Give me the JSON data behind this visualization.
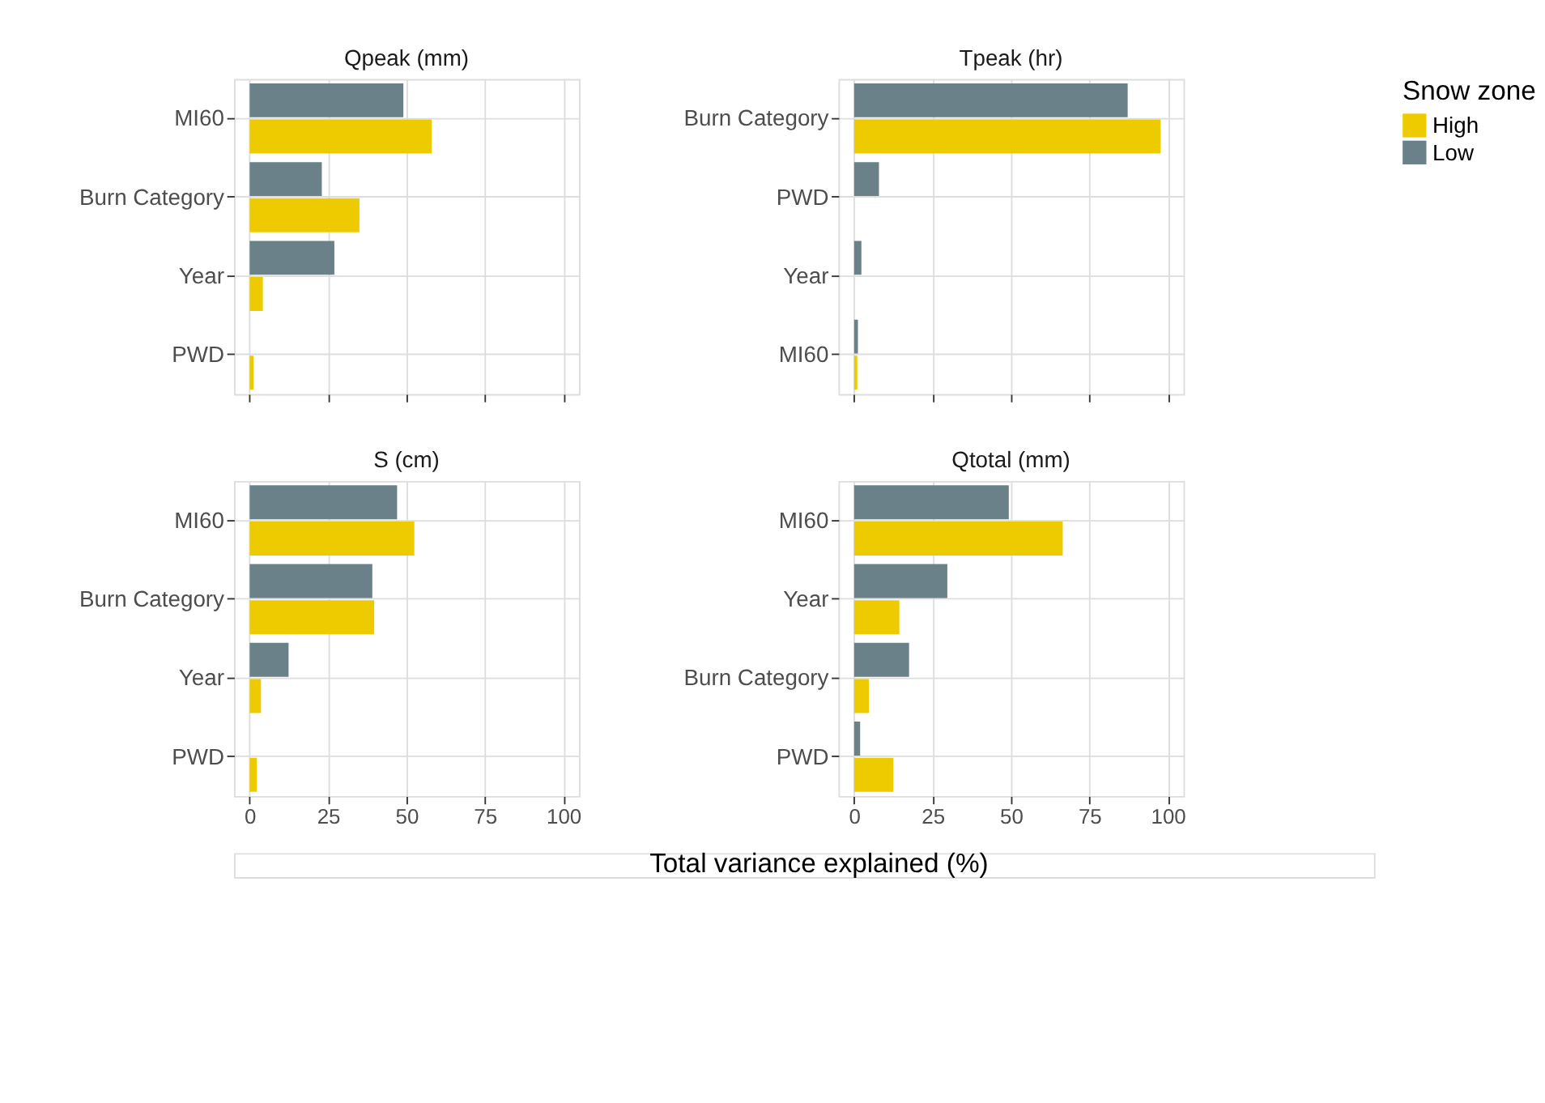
{
  "chart_data": [
    {
      "type": "bar",
      "orientation": "horizontal",
      "title": "Qpeak (mm)",
      "categories": [
        "MI60",
        "Burn Category",
        "Year",
        "PWD"
      ],
      "series": [
        {
          "name": "High",
          "color": "#eecb00",
          "values": [
            58,
            35,
            4.2,
            1.2
          ]
        },
        {
          "name": "Low",
          "color": "#6a8189",
          "values": [
            49,
            23,
            27,
            null
          ]
        }
      ],
      "xlim": [
        -5,
        105
      ],
      "xticks": [
        0,
        25,
        50,
        75,
        100
      ],
      "grid": true,
      "tick_labels": "y",
      "legend": "right",
      "legend_title": "Snow zone"
    },
    {
      "type": "bar",
      "orientation": "horizontal",
      "title": "Tpeak (hr)",
      "categories": [
        "Burn Category",
        "PWD",
        "Year",
        "MI60"
      ],
      "series": [
        {
          "name": "High",
          "color": "#eecb00",
          "values": [
            97.7,
            null,
            null,
            1.0
          ]
        },
        {
          "name": "Low",
          "color": "#6a8189",
          "values": [
            87.2,
            7.9,
            2.3,
            1.2
          ]
        }
      ],
      "xlim": [
        -5,
        105
      ],
      "xticks": [
        0,
        25,
        50,
        75,
        100
      ],
      "grid": true,
      "tick_labels": "y"
    },
    {
      "type": "bar",
      "orientation": "horizontal",
      "title": "S (cm)",
      "categories": [
        "MI60",
        "Burn Category",
        "Year",
        "PWD"
      ],
      "series": [
        {
          "name": "High",
          "color": "#eecb00",
          "values": [
            52.5,
            39.7,
            3.6,
            2.3
          ]
        },
        {
          "name": "Low",
          "color": "#6a8189",
          "values": [
            47,
            39.1,
            12.4,
            null
          ]
        }
      ],
      "xlim": [
        -5,
        105
      ],
      "xticks": [
        0,
        25,
        50,
        75,
        100
      ],
      "grid": true,
      "xlabel": "Total variance explained (%)"
    },
    {
      "type": "bar",
      "orientation": "horizontal",
      "title": "Qtotal (mm)",
      "categories": [
        "MI60",
        "Year",
        "Burn Category",
        "PWD"
      ],
      "series": [
        {
          "name": "High",
          "color": "#eecb00",
          "values": [
            66.5,
            14.4,
            4.7,
            12.5
          ]
        },
        {
          "name": "Low",
          "color": "#6a8189",
          "values": [
            49.3,
            29.7,
            17.5,
            1.9
          ]
        }
      ],
      "xlim": [
        -5,
        105
      ],
      "xticks": [
        0,
        25,
        50,
        75,
        100
      ],
      "grid": true
    }
  ]
}
